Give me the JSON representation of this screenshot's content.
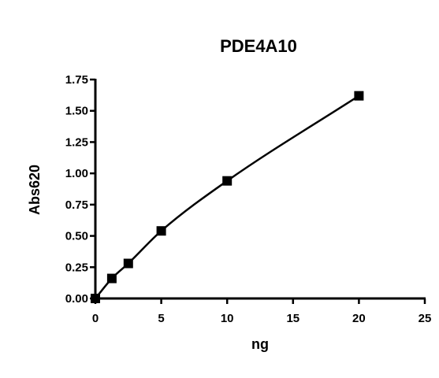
{
  "chart_data": {
    "type": "scatter",
    "title": "PDE4A10",
    "xlabel": "ng",
    "ylabel": "Abs620",
    "xlim": [
      0,
      25
    ],
    "ylim": [
      0,
      1.75
    ],
    "x_ticks": [
      "0",
      "5",
      "10",
      "15",
      "20",
      "25"
    ],
    "y_ticks": [
      "0.00",
      "0.25",
      "0.50",
      "0.75",
      "1.00",
      "1.25",
      "1.50",
      "1.75"
    ],
    "grid": false,
    "series": [
      {
        "x": [
          0,
          1.25,
          2.5,
          5,
          10,
          20
        ],
        "y": [
          0.0,
          0.16,
          0.28,
          0.54,
          0.94,
          1.62
        ],
        "marker": "square",
        "fit_line": true
      }
    ],
    "colors": {
      "marks": "#000000",
      "background": "#ffffff"
    }
  }
}
